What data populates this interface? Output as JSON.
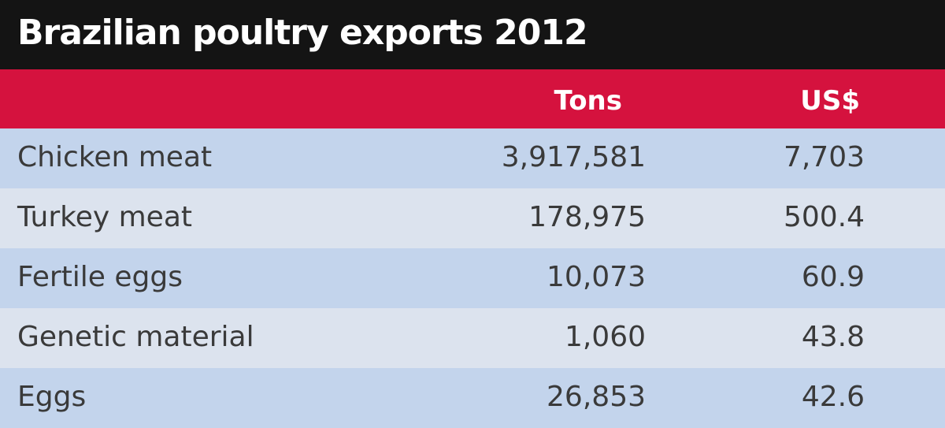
{
  "title": "Brazilian poultry exports 2012",
  "table": {
    "columns": [
      "Tons",
      "US$"
    ],
    "rows": [
      [
        "Chicken meat",
        "3,917,581",
        "7,703"
      ],
      [
        "Turkey meat",
        "178,975",
        "500.4"
      ],
      [
        "Fertile eggs",
        "10,073",
        "60.9"
      ],
      [
        "Genetic material",
        "1,060",
        "43.8"
      ],
      [
        "Eggs",
        "26,853",
        "42.6"
      ]
    ]
  }
}
